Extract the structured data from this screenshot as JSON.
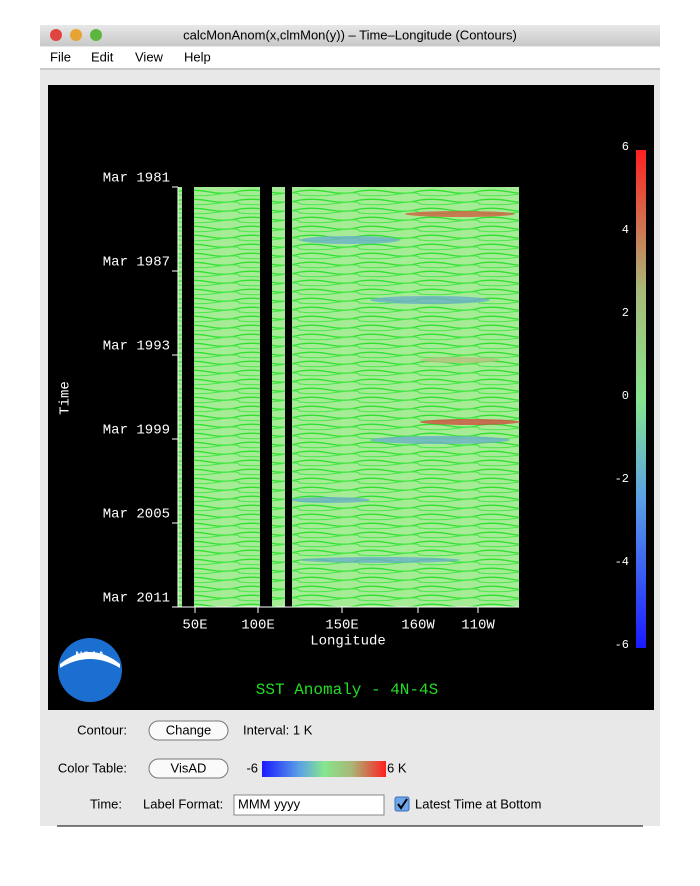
{
  "window": {
    "title": "calcMonAnom(x,clmMon(y)) – Time–Longitude (Contours)",
    "menu": [
      "File",
      "Edit",
      "View",
      "Help"
    ]
  },
  "plot": {
    "y_ticks": [
      "Mar 1981",
      "Mar 1987",
      "Mar 1993",
      "Mar 1999",
      "Mar 2005",
      "Mar 2011"
    ],
    "x_ticks": [
      "50E",
      "100E",
      "150E",
      "160W",
      "110W"
    ],
    "x_label": "Longitude",
    "y_label": "Time",
    "colorbar_ticks": [
      "6",
      "4",
      "2",
      "0",
      "-2",
      "-4",
      "-6"
    ],
    "title": "SST Anomaly - 4N-4S",
    "logo": "NOAA"
  },
  "controls": {
    "contour_label": "Contour:",
    "contour_button": "Change",
    "interval": "Interval: 1 K",
    "color_table_label": "Color Table:",
    "color_table_button": "VisAD",
    "range_min": "-6",
    "range_max": "6 K",
    "time_label": "Time:",
    "format_label": "Label Format:",
    "format_value": "MMM yyyy",
    "latest_checkbox": "Latest Time at Bottom"
  }
}
